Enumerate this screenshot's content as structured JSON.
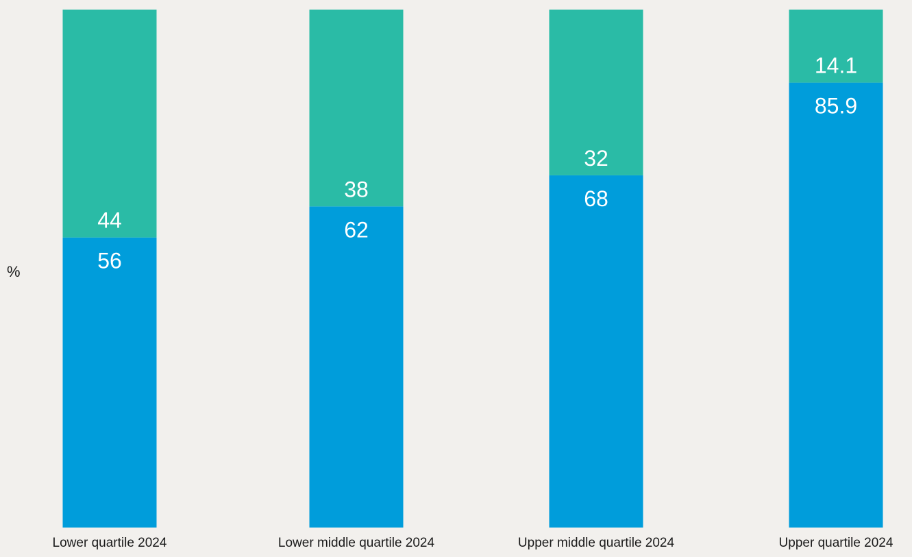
{
  "chart_data": {
    "type": "bar",
    "stacked": true,
    "normalized": true,
    "ylabel": "%",
    "categories": [
      "Lower quartile 2024",
      "Lower middle quartile 2024",
      "Upper middle quartile 2024",
      "Upper quartile 2024"
    ],
    "series": [
      {
        "values": [
          56,
          62,
          68,
          85.9
        ],
        "labels": [
          "56",
          "62",
          "68",
          "85.9"
        ],
        "color": "#009ddb"
      },
      {
        "values": [
          44,
          38,
          32,
          14.1
        ],
        "labels": [
          "44",
          "38",
          "32",
          "14.1"
        ],
        "color": "#2abba6"
      }
    ],
    "ylim": [
      0,
      100
    ],
    "grid": false,
    "legend": "none"
  }
}
